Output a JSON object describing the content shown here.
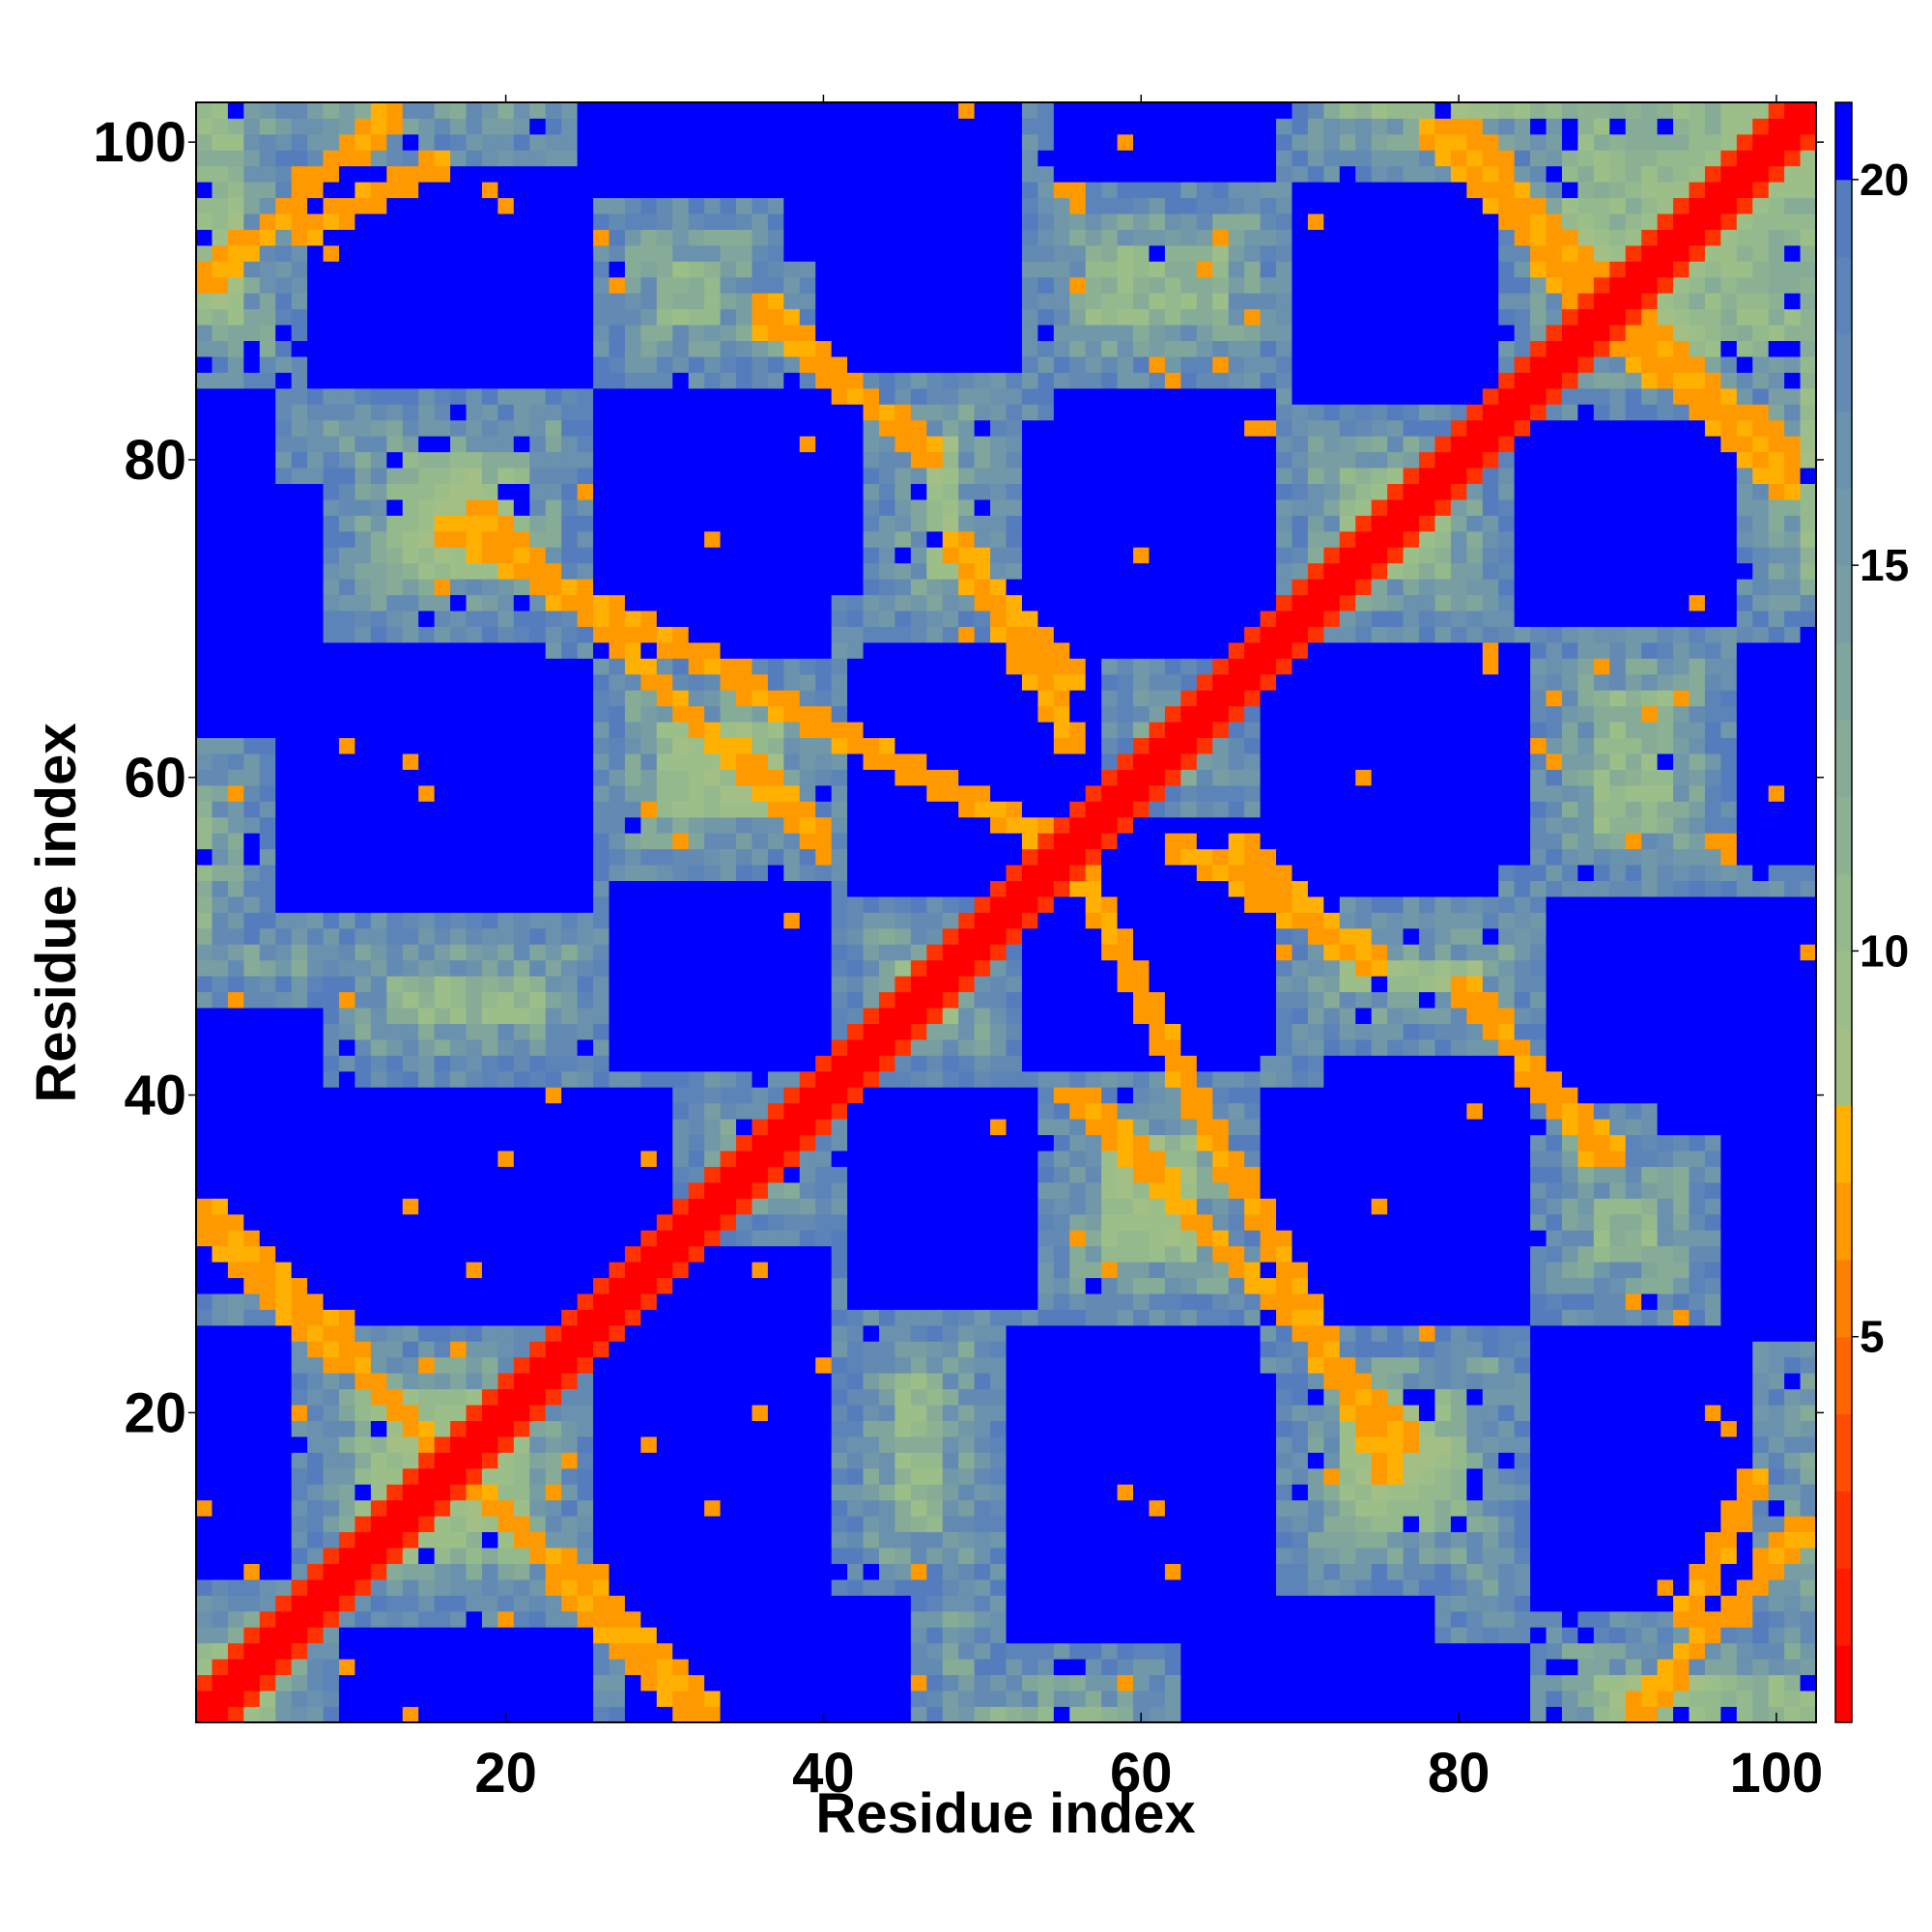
{
  "chart_data": {
    "type": "heatmap",
    "title": "",
    "xlabel": "Residue index",
    "ylabel": "Residue index",
    "xlim": [
      0.5,
      102.5
    ],
    "ylim": [
      0.5,
      102.5
    ],
    "xticks": [
      20,
      40,
      60,
      80,
      100
    ],
    "yticks": [
      20,
      40,
      60,
      80,
      100
    ],
    "x_tick_labels": [
      "20",
      "40",
      "60",
      "80",
      "100"
    ],
    "y_tick_labels": [
      "20",
      "40",
      "60",
      "80",
      "100"
    ],
    "grid": false,
    "n_residues": 102,
    "colorbar": {
      "range": [
        0,
        21
      ],
      "ticks": [
        5,
        10,
        15,
        20
      ],
      "tick_labels": [
        "5",
        "10",
        "15",
        "20"
      ],
      "levels": [
        {
          "max": 1,
          "color": "#ff0000"
        },
        {
          "max": 2,
          "color": "#ff1a00"
        },
        {
          "max": 3,
          "color": "#ff3300"
        },
        {
          "max": 4,
          "color": "#ff4d00"
        },
        {
          "max": 5,
          "color": "#ff6600"
        },
        {
          "max": 6,
          "color": "#ff8000"
        },
        {
          "max": 7,
          "color": "#ff9900"
        },
        {
          "max": 8,
          "color": "#ffb000"
        },
        {
          "max": 9,
          "color": "#a3bf85"
        },
        {
          "max": 10,
          "color": "#9cbf8a"
        },
        {
          "max": 11,
          "color": "#94b98d"
        },
        {
          "max": 12,
          "color": "#8db293"
        },
        {
          "max": 13,
          "color": "#86ac98"
        },
        {
          "max": 14,
          "color": "#7fa59d"
        },
        {
          "max": 15,
          "color": "#789ea3"
        },
        {
          "max": 16,
          "color": "#7198a8"
        },
        {
          "max": 17,
          "color": "#6a91ad"
        },
        {
          "max": 18,
          "color": "#638ab3"
        },
        {
          "max": 19,
          "color": "#5c84b8"
        },
        {
          "max": 20,
          "color": "#557dbd"
        },
        {
          "max": 21,
          "color": "#0000ff"
        }
      ]
    },
    "value_description": "Symmetric residue-residue distance map; red diagonal (distance < 4), orange anti-parallel contact bands, blue-green intermediate distances, saturated blue for distances >= 20",
    "features": {
      "diagonal": {
        "value": 1
      },
      "contact_bands": [
        {
          "x": [
            1,
            33
          ],
          "y": [
            32,
            1
          ],
          "min_value": 7
        },
        {
          "x": [
            1,
            13
          ],
          "y": [
            91,
            102
          ],
          "min_value": 7
        },
        {
          "x": [
            16,
            54
          ],
          "y": [
            76,
            56
          ],
          "min_value": 7
        },
        {
          "x": [
            36,
            47
          ],
          "y": [
            90,
            80
          ],
          "min_value": 7
        },
        {
          "x": [
            48,
            56
          ],
          "y": [
            75,
            62
          ],
          "min_value": 7
        },
        {
          "x": [
            56,
            77
          ],
          "y": [
            40,
            18
          ],
          "min_value": 7
        },
        {
          "x": [
            66,
            75
          ],
          "y": [
            56,
            48
          ],
          "min_value": 7
        },
        {
          "x": [
            80,
            90
          ],
          "y": [
            101,
            90
          ],
          "min_value": 7
        },
        {
          "x": [
            90,
            101
          ],
          "y": [
            88,
            78
          ],
          "min_value": 7
        },
        {
          "x": [
            81,
            89
          ],
          "y": [
            46,
            36
          ],
          "min_value": 7
        },
        {
          "x": [
            94,
            99
          ],
          "y": [
            7,
            16
          ],
          "min_value": 6
        }
      ],
      "far_blocks": [
        {
          "x": [
            8,
            25
          ],
          "y": [
            85,
            98
          ]
        },
        {
          "x": [
            26,
            42
          ],
          "y": [
            72,
            84
          ]
        },
        {
          "x": [
            53,
            67
          ],
          "y": [
            70,
            82
          ]
        },
        {
          "x": [
            70,
            82
          ],
          "y": [
            84,
            97
          ]
        },
        {
          "x": [
            86,
            96
          ],
          "y": [
            70,
            82
          ]
        },
        {
          "x": [
            6,
            25
          ],
          "y": [
            52,
            67
          ]
        },
        {
          "x": [
            42,
            54
          ],
          "y": [
            53,
            67
          ]
        },
        {
          "x": [
            68,
            84
          ],
          "y": [
            55,
            68
          ]
        },
        {
          "x": [
            86,
            98
          ],
          "y": [
            40,
            52
          ]
        },
        {
          "x": [
            6,
            25
          ],
          "y": [
            26,
            40
          ]
        },
        {
          "x": [
            26,
            40
          ],
          "y": [
            17,
            30
          ]
        },
        {
          "x": [
            42,
            53
          ],
          "y": [
            27,
            40
          ]
        },
        {
          "x": [
            54,
            68
          ],
          "y": [
            43,
            57
          ]
        },
        {
          "x": [
            68,
            84
          ],
          "y": [
            26,
            40
          ]
        },
        {
          "x": [
            55,
            68
          ],
          "y": [
            8,
            22
          ]
        },
        {
          "x": [
            86,
            98
          ],
          "y": [
            15,
            25
          ]
        },
        {
          "x": [
            1,
            6
          ],
          "y": [
            10,
            25
          ]
        },
        {
          "x": [
            1,
            5
          ],
          "y": [
            68,
            84
          ]
        },
        {
          "x": [
            97,
            102
          ],
          "y": [
            25,
            40
          ]
        },
        {
          "x": [
            38,
            52
          ],
          "y": [
            93,
            102
          ]
        },
        {
          "x": [
            28,
            45
          ],
          "y": [
            1,
            8
          ]
        },
        {
          "x": [
            63,
            78
          ],
          "y": [
            1,
            8
          ]
        },
        {
          "x": [
            98,
            102
          ],
          "y": [
            55,
            68
          ]
        }
      ]
    }
  }
}
